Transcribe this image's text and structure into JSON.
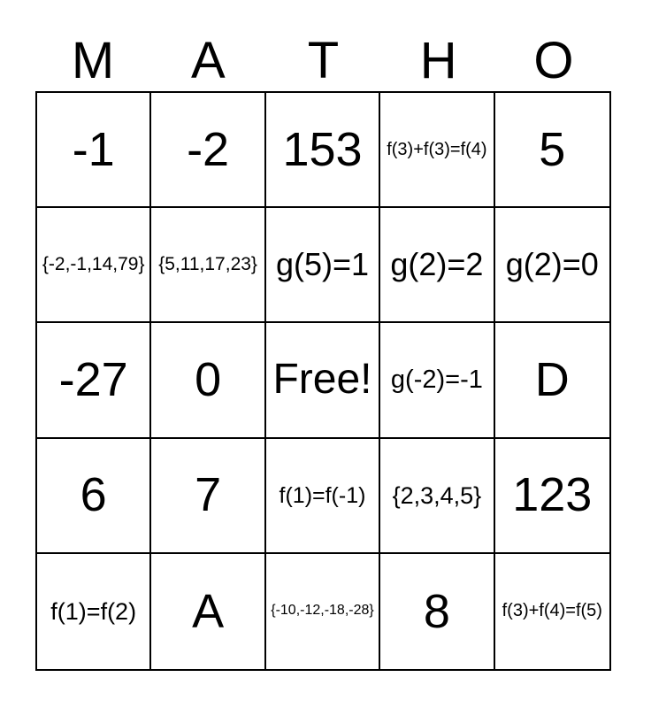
{
  "card_title_letters": [
    "M",
    "A",
    "T",
    "H",
    "O"
  ],
  "board": {
    "rows": [
      [
        "-1",
        "-2",
        "153",
        "f(3)+f(3)=f(4)",
        "5"
      ],
      [
        "{-2,-1,14,79}",
        "{5,11,17,23}",
        "g(5)=1",
        "g(2)=2",
        "g(2)=0"
      ],
      [
        "-27",
        "0",
        "Free!",
        "g(-2)=-1",
        "D"
      ],
      [
        "6",
        "7",
        "f(1)=f(-1)",
        "{2,3,4,5}",
        "123"
      ],
      [
        "f(1)=f(2)",
        "A",
        "{-10,-12,-18,-28}",
        "8",
        "f(3)+f(4)=f(5)"
      ]
    ],
    "free_cell": {
      "row": 2,
      "col": 2,
      "label": "Free!"
    }
  },
  "colors": {
    "text": "#000000",
    "grid_line": "#000000",
    "background": "#ffffff"
  }
}
